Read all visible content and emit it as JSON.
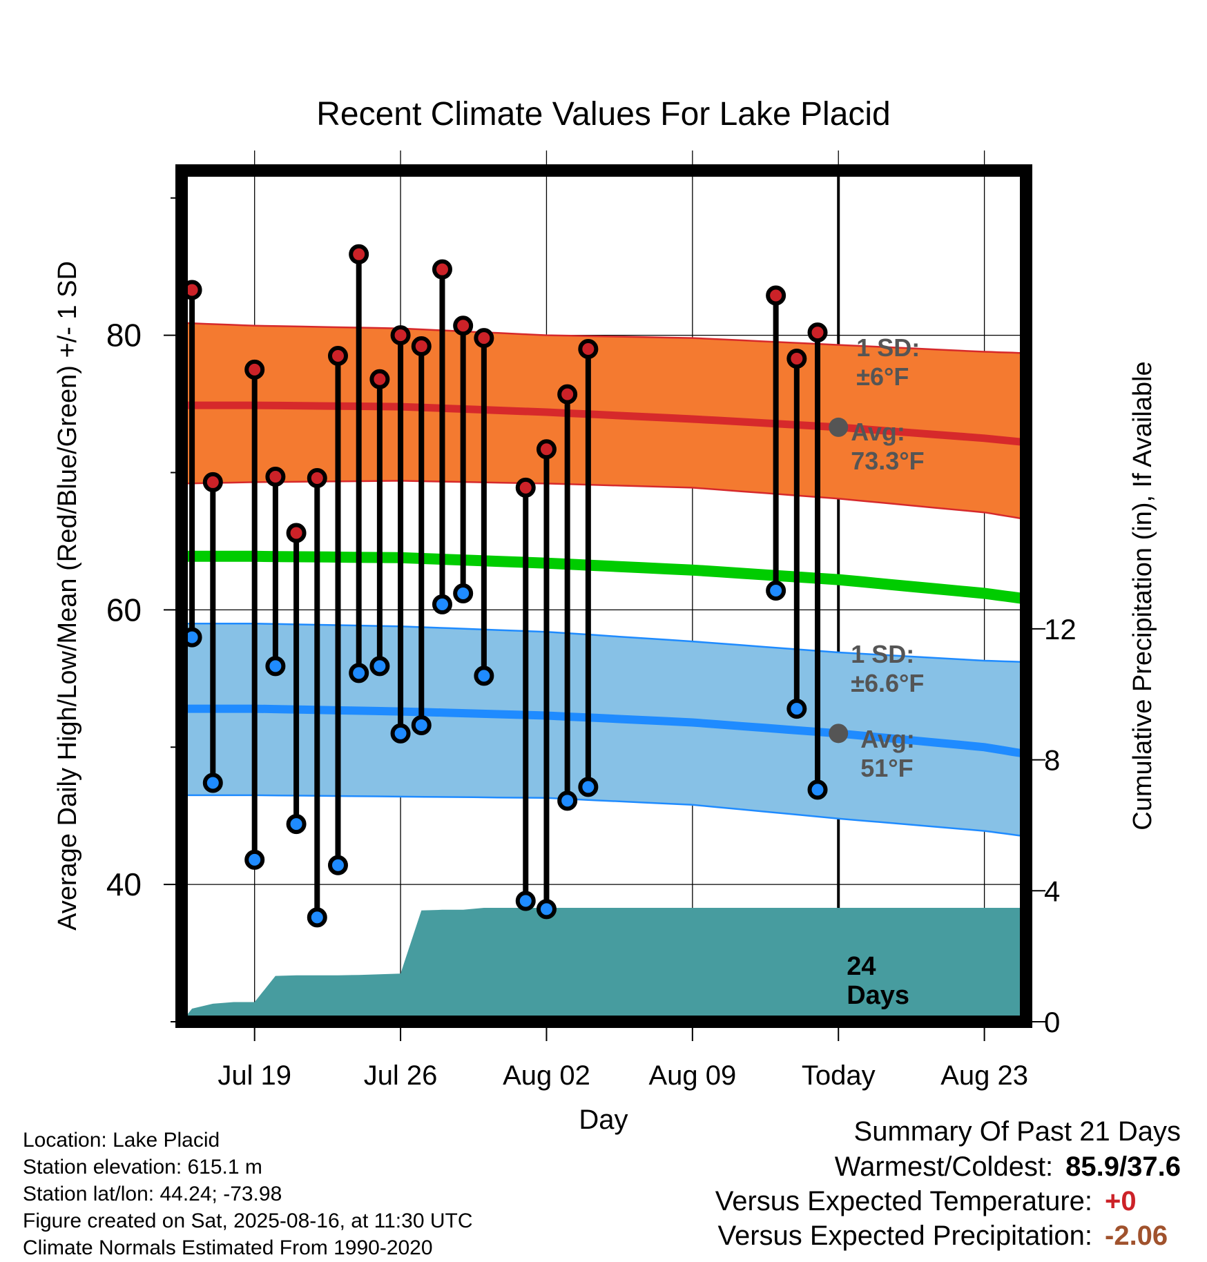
{
  "chart_data": {
    "type": "line",
    "title": "Recent Climate Values For Lake Placid",
    "xlabel": "Day",
    "ylabel": "Average Daily High/Low/Mean (Red/Blue/Green) +/- 1 SD",
    "y2label": "Cumulative Precipitation (in), If Available",
    "x_tick_labels": [
      "Jul 19",
      "Jul 26",
      "Aug 02",
      "Aug 09",
      "Today",
      "Aug 23"
    ],
    "x_tick_days": [
      3,
      10,
      17,
      24,
      31,
      38
    ],
    "x_range_days": [
      -0.5,
      40
    ],
    "ylim": [
      30,
      92
    ],
    "y_ticks": [
      40,
      60,
      80
    ],
    "y2lim": [
      0,
      26
    ],
    "y2_ticks": [
      0,
      4,
      8,
      12
    ],
    "grid": true,
    "today_day": 31,
    "normal_high": {
      "name": "Avg high",
      "days": [
        -0.5,
        3,
        10,
        17,
        24,
        31,
        38,
        40
      ],
      "mean": [
        74.9,
        74.9,
        74.8,
        74.4,
        73.9,
        73.3,
        72.5,
        72.2
      ],
      "plus_sd": [
        80.9,
        80.7,
        80.5,
        80.0,
        79.8,
        79.3,
        78.8,
        78.7
      ],
      "minus_sd": [
        69.2,
        69.3,
        69.4,
        69.2,
        68.9,
        68.1,
        67.1,
        66.6
      ]
    },
    "normal_mean": {
      "days": [
        -0.5,
        3,
        10,
        17,
        24,
        31,
        38,
        40
      ],
      "values": [
        63.9,
        63.9,
        63.8,
        63.4,
        62.9,
        62.2,
        61.2,
        60.8
      ]
    },
    "normal_low": {
      "name": "Avg low",
      "days": [
        -0.5,
        3,
        10,
        17,
        24,
        31,
        38,
        40
      ],
      "mean": [
        52.8,
        52.8,
        52.6,
        52.3,
        51.8,
        51.0,
        50.0,
        49.5
      ],
      "plus_sd": [
        59.0,
        59.0,
        58.8,
        58.4,
        57.7,
        56.9,
        56.3,
        56.2
      ],
      "minus_sd": [
        46.5,
        46.5,
        46.4,
        46.3,
        45.8,
        44.8,
        43.9,
        43.5
      ]
    },
    "daily": {
      "days": [
        0,
        1,
        3,
        4,
        5,
        6,
        7,
        8,
        9,
        10,
        11,
        12,
        13,
        14,
        16,
        17,
        18,
        19,
        28,
        29,
        30
      ],
      "high": [
        83.3,
        69.3,
        77.5,
        69.7,
        65.6,
        69.6,
        78.5,
        85.9,
        76.8,
        80.0,
        79.2,
        84.8,
        80.7,
        79.8,
        68.9,
        71.7,
        75.7,
        79.0,
        82.9,
        78.3,
        80.2
      ],
      "low": [
        58.0,
        47.4,
        41.8,
        55.9,
        44.4,
        37.6,
        41.4,
        55.4,
        55.9,
        51.0,
        51.6,
        60.4,
        61.2,
        55.2,
        38.8,
        38.2,
        46.1,
        47.1,
        61.4,
        52.8,
        46.9
      ]
    },
    "precip_cumulative": {
      "days": [
        -0.5,
        0,
        1,
        2,
        3,
        4,
        5,
        6,
        7,
        8,
        9,
        10,
        11,
        12,
        13,
        14,
        40
      ],
      "values": [
        0.0,
        0.4,
        0.55,
        0.6,
        0.6,
        1.4,
        1.42,
        1.42,
        1.42,
        1.43,
        1.45,
        1.47,
        3.4,
        3.42,
        3.42,
        3.48,
        3.48
      ]
    },
    "annotations": {
      "high_sd_label": "1 SD:",
      "high_sd_value": "±6°F",
      "high_avg_label": "Avg:",
      "high_avg_value": "73.3°F",
      "low_sd_label": "1 SD:",
      "low_sd_value": "±6.6°F",
      "low_avg_label": "Avg:",
      "low_avg_value": "51°F",
      "precip_days_line1": "24",
      "precip_days_line2": "Days"
    },
    "colors": {
      "high_band": "#f47a30",
      "high_line": "#d6292b",
      "mean_line": "#00cc00",
      "low_band": "#87c1e6",
      "low_line": "#1f8bff",
      "precip": "#479c9f",
      "dot_high": "#cc2228",
      "dot_low": "#1f8bff",
      "avg_marker": "#555555"
    }
  },
  "info": {
    "location": "Location: Lake Placid",
    "elevation": "Station elevation: 615.1 m",
    "latlon": "Station lat/lon: 44.24; -73.98",
    "created": "Figure created on Sat, 2025-08-16, at 11:30 UTC",
    "normals": "Climate Normals Estimated From 1990-2020"
  },
  "summary": {
    "title": "Summary Of Past 21 Days",
    "warm_cold_label": "Warmest/Coldest:",
    "warm_cold_value": "85.9/37.6",
    "temp_label": "Versus Expected Temperature:",
    "temp_value": "+0",
    "temp_color": "#cc2228",
    "precip_label": "Versus Expected Precipitation:",
    "precip_value": "-2.06",
    "precip_color": "#a0522d"
  }
}
